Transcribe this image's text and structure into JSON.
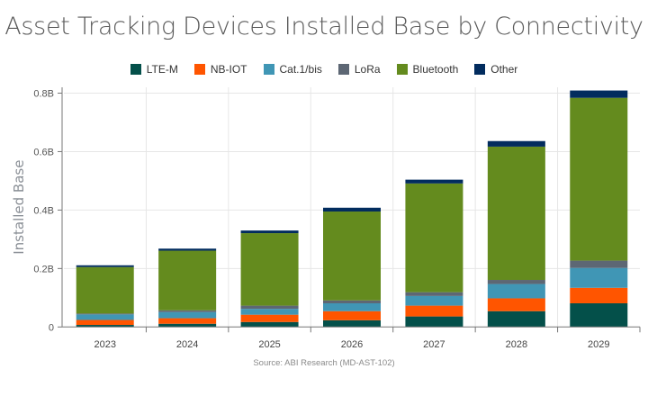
{
  "chart_data": {
    "type": "bar",
    "stacked": true,
    "title": "Asset Tracking Devices Installed Base by Connectivity",
    "xlabel": "",
    "ylabel": "Installed Base",
    "source": "Source: ABI Research (MD-AST-102)",
    "categories": [
      "2023",
      "2024",
      "2025",
      "2026",
      "2027",
      "2028",
      "2029"
    ],
    "ylim": [
      0,
      0.82
    ],
    "yticks": [
      0,
      0.2,
      0.4,
      0.6,
      0.8
    ],
    "ytick_labels": [
      "0",
      "0.2B",
      "0.4B",
      "0.6B",
      "0.8B"
    ],
    "grid": true,
    "legend_position": "top",
    "series": [
      {
        "name": "LTE-M",
        "color": "#04504A",
        "values": [
          0.007,
          0.011,
          0.017,
          0.023,
          0.036,
          0.054,
          0.081
        ]
      },
      {
        "name": "NB-IOT",
        "color": "#FF5500",
        "values": [
          0.017,
          0.019,
          0.025,
          0.031,
          0.037,
          0.044,
          0.053
        ]
      },
      {
        "name": "Cat.1/bis",
        "color": "#4096B5",
        "values": [
          0.019,
          0.021,
          0.02,
          0.027,
          0.033,
          0.049,
          0.068
        ]
      },
      {
        "name": "LoRa",
        "color": "#5D6774",
        "values": [
          0.003,
          0.006,
          0.011,
          0.01,
          0.013,
          0.014,
          0.025
        ]
      },
      {
        "name": "Bluetooth",
        "color": "#648B1E",
        "values": [
          0.159,
          0.204,
          0.248,
          0.304,
          0.372,
          0.456,
          0.557
        ]
      },
      {
        "name": "Other",
        "color": "#022C5E",
        "values": [
          0.006,
          0.007,
          0.009,
          0.013,
          0.013,
          0.019,
          0.025
        ]
      }
    ]
  }
}
